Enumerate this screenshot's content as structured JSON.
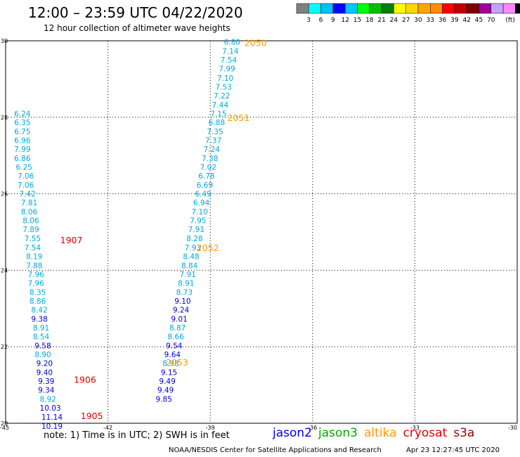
{
  "header": {
    "title": "12:00 – 23:59 UTC 04/22/2020",
    "subtitle": "12 hour collection of altimeter wave heights"
  },
  "colorbar": {
    "colors": [
      "#808080",
      "#00ffff",
      "#00bfff",
      "#0000ff",
      "#00c8ff",
      "#00ff00",
      "#00c000",
      "#008000",
      "#ffff00",
      "#ffd700",
      "#ffa500",
      "#ff8c00",
      "#ff0000",
      "#c00000",
      "#800000",
      "#a000a0",
      "#c8a0ff",
      "#ff88ff",
      "#000000"
    ],
    "labels": [
      "3",
      "6",
      "9",
      "12",
      "15",
      "18",
      "21",
      "24",
      "27",
      "30",
      "33",
      "36",
      "39",
      "42",
      "45",
      "70",
      "(ft)"
    ]
  },
  "axes": {
    "x_ticks": [
      "-45",
      "-42",
      "-39",
      "-36",
      "-33",
      "-30"
    ],
    "y_ticks": [
      "20",
      "22",
      "24",
      "26",
      "28",
      "30"
    ]
  },
  "chart_data": {
    "type": "scatter",
    "xlim": [
      -45,
      -30
    ],
    "ylim": [
      20,
      30
    ],
    "grid": true,
    "tracks": [
      {
        "satellite": "jason2",
        "pass_labels": [
          {
            "text": "2050",
            "lon": -38.0,
            "lat": 29.95,
            "color": "#ff9900"
          },
          {
            "text": "2051",
            "lon": -38.5,
            "lat": 28.0,
            "color": "#ff9900"
          },
          {
            "text": "2052",
            "lon": -39.4,
            "lat": 24.6,
            "color": "#ff9900"
          },
          {
            "text": "2053",
            "lon": -40.3,
            "lat": 21.6,
            "color": "#ff9900"
          }
        ],
        "points": [
          {
            "lon": -38.6,
            "lat": 29.97,
            "swh": "6.80",
            "color": "#00aadd"
          },
          {
            "lon": -38.65,
            "lat": 29.73,
            "swh": "7.14",
            "color": "#00aadd"
          },
          {
            "lon": -38.7,
            "lat": 29.5,
            "swh": "7.54",
            "color": "#00aadd"
          },
          {
            "lon": -38.75,
            "lat": 29.27,
            "swh": "7.99",
            "color": "#00aadd"
          },
          {
            "lon": -38.8,
            "lat": 29.03,
            "swh": "7.10",
            "color": "#00aadd"
          },
          {
            "lon": -38.85,
            "lat": 28.8,
            "swh": "7.53",
            "color": "#00aadd"
          },
          {
            "lon": -38.9,
            "lat": 28.57,
            "swh": "7.22",
            "color": "#00aadd"
          },
          {
            "lon": -38.95,
            "lat": 28.33,
            "swh": "7.44",
            "color": "#00aadd"
          },
          {
            "lon": -39.0,
            "lat": 28.1,
            "swh": "7.15",
            "color": "#00aadd"
          },
          {
            "lon": -39.05,
            "lat": 27.87,
            "swh": "6.88",
            "color": "#00aadd"
          },
          {
            "lon": -39.1,
            "lat": 27.63,
            "swh": "7.35",
            "color": "#00aadd"
          },
          {
            "lon": -39.15,
            "lat": 27.4,
            "swh": "7.37",
            "color": "#00aadd"
          },
          {
            "lon": -39.2,
            "lat": 27.17,
            "swh": "7.24",
            "color": "#00aadd"
          },
          {
            "lon": -39.25,
            "lat": 26.93,
            "swh": "7.38",
            "color": "#00aadd"
          },
          {
            "lon": -39.3,
            "lat": 26.7,
            "swh": "7.02",
            "color": "#00aadd"
          },
          {
            "lon": -39.35,
            "lat": 26.47,
            "swh": "6.78",
            "color": "#00aadd"
          },
          {
            "lon": -39.4,
            "lat": 26.23,
            "swh": "6.69",
            "color": "#00aadd"
          },
          {
            "lon": -39.45,
            "lat": 26.0,
            "swh": "6.49",
            "color": "#00aadd"
          },
          {
            "lon": -39.5,
            "lat": 25.77,
            "swh": "6.94",
            "color": "#00aadd"
          },
          {
            "lon": -39.55,
            "lat": 25.53,
            "swh": "7.10",
            "color": "#00aadd"
          },
          {
            "lon": -39.6,
            "lat": 25.3,
            "swh": "7.95",
            "color": "#00aadd"
          },
          {
            "lon": -39.65,
            "lat": 25.07,
            "swh": "7.91",
            "color": "#00aadd"
          },
          {
            "lon": -39.7,
            "lat": 24.83,
            "swh": "8.28",
            "color": "#00aadd"
          },
          {
            "lon": -39.75,
            "lat": 24.6,
            "swh": "7.93",
            "color": "#00aadd"
          },
          {
            "lon": -39.8,
            "lat": 24.37,
            "swh": "8.48",
            "color": "#00aadd"
          },
          {
            "lon": -39.85,
            "lat": 24.13,
            "swh": "8.84",
            "color": "#00aadd"
          },
          {
            "lon": -39.9,
            "lat": 23.9,
            "swh": "7.91",
            "color": "#00aadd"
          },
          {
            "lon": -39.95,
            "lat": 23.67,
            "swh": "8.91",
            "color": "#00aadd"
          },
          {
            "lon": -40.0,
            "lat": 23.43,
            "swh": "8.73",
            "color": "#00aadd"
          },
          {
            "lon": -40.05,
            "lat": 23.2,
            "swh": "9.10",
            "color": "#0000cc"
          },
          {
            "lon": -40.1,
            "lat": 22.97,
            "swh": "9.24",
            "color": "#0000cc"
          },
          {
            "lon": -40.15,
            "lat": 22.73,
            "swh": "9.01",
            "color": "#0000cc"
          },
          {
            "lon": -40.2,
            "lat": 22.5,
            "swh": "8.87",
            "color": "#00aadd"
          },
          {
            "lon": -40.25,
            "lat": 22.27,
            "swh": "8.66",
            "color": "#00aadd"
          },
          {
            "lon": -40.3,
            "lat": 22.03,
            "swh": "9.54",
            "color": "#0000cc"
          },
          {
            "lon": -40.35,
            "lat": 21.8,
            "swh": "9.64",
            "color": "#0000cc"
          },
          {
            "lon": -40.4,
            "lat": 21.57,
            "swh": "8.98",
            "color": "#00aadd"
          },
          {
            "lon": -40.45,
            "lat": 21.33,
            "swh": "9.15",
            "color": "#0000cc"
          },
          {
            "lon": -40.5,
            "lat": 21.1,
            "swh": "9.49",
            "color": "#0000cc"
          },
          {
            "lon": -40.55,
            "lat": 20.87,
            "swh": "9.49",
            "color": "#0000cc"
          },
          {
            "lon": -40.6,
            "lat": 20.63,
            "swh": "9.85",
            "color": "#0000cc"
          }
        ]
      },
      {
        "satellite": "cryosat",
        "pass_labels": [
          {
            "text": "1907",
            "lon": -43.4,
            "lat": 24.8,
            "color": "#dd0000"
          },
          {
            "text": "1906",
            "lon": -43.0,
            "lat": 21.15,
            "color": "#dd0000"
          },
          {
            "text": "1905",
            "lon": -42.8,
            "lat": 20.2,
            "color": "#dd0000"
          }
        ],
        "points": [
          {
            "lon": -44.75,
            "lat": 28.1,
            "swh": "6.24",
            "color": "#00aadd"
          },
          {
            "lon": -44.75,
            "lat": 27.87,
            "swh": "6.35",
            "color": "#00aadd"
          },
          {
            "lon": -44.75,
            "lat": 27.63,
            "swh": "6.75",
            "color": "#00aadd"
          },
          {
            "lon": -44.75,
            "lat": 27.4,
            "swh": "6.96",
            "color": "#00aadd"
          },
          {
            "lon": -44.75,
            "lat": 27.17,
            "swh": "7.99",
            "color": "#00aadd"
          },
          {
            "lon": -44.75,
            "lat": 26.93,
            "swh": "6.86",
            "color": "#00aadd"
          },
          {
            "lon": -44.7,
            "lat": 26.7,
            "swh": "6.25",
            "color": "#00aadd"
          },
          {
            "lon": -44.65,
            "lat": 26.47,
            "swh": "7.06",
            "color": "#00aadd"
          },
          {
            "lon": -44.65,
            "lat": 26.23,
            "swh": "7.06",
            "color": "#00aadd"
          },
          {
            "lon": -44.6,
            "lat": 26.0,
            "swh": "7.42",
            "color": "#00aadd"
          },
          {
            "lon": -44.55,
            "lat": 25.77,
            "swh": "7.81",
            "color": "#00aadd"
          },
          {
            "lon": -44.55,
            "lat": 25.53,
            "swh": "8.06",
            "color": "#00aadd"
          },
          {
            "lon": -44.5,
            "lat": 25.3,
            "swh": "8.06",
            "color": "#00aadd"
          },
          {
            "lon": -44.5,
            "lat": 25.07,
            "swh": "7.89",
            "color": "#00aadd"
          },
          {
            "lon": -44.45,
            "lat": 24.83,
            "swh": "7.55",
            "color": "#00aadd"
          },
          {
            "lon": -44.45,
            "lat": 24.6,
            "swh": "7.54",
            "color": "#00aadd"
          },
          {
            "lon": -44.4,
            "lat": 24.37,
            "swh": "8.19",
            "color": "#00aadd"
          },
          {
            "lon": -44.4,
            "lat": 24.13,
            "swh": "7.88",
            "color": "#00aadd"
          },
          {
            "lon": -44.35,
            "lat": 23.9,
            "swh": "7.96",
            "color": "#00aadd"
          },
          {
            "lon": -44.35,
            "lat": 23.67,
            "swh": "7.96",
            "color": "#00aadd"
          },
          {
            "lon": -44.3,
            "lat": 23.43,
            "swh": "8.35",
            "color": "#00aadd"
          },
          {
            "lon": -44.3,
            "lat": 23.2,
            "swh": "8.86",
            "color": "#00aadd"
          },
          {
            "lon": -44.25,
            "lat": 22.97,
            "swh": "8.42",
            "color": "#00aadd"
          },
          {
            "lon": -44.25,
            "lat": 22.73,
            "swh": "9.38",
            "color": "#0000cc"
          },
          {
            "lon": -44.2,
            "lat": 22.5,
            "swh": "8.91",
            "color": "#00aadd"
          },
          {
            "lon": -44.2,
            "lat": 22.27,
            "swh": "8.54",
            "color": "#00aadd"
          },
          {
            "lon": -44.15,
            "lat": 22.03,
            "swh": "9.58",
            "color": "#0000cc"
          },
          {
            "lon": -44.15,
            "lat": 21.8,
            "swh": "8.90",
            "color": "#00aadd"
          },
          {
            "lon": -44.1,
            "lat": 21.57,
            "swh": "9.20",
            "color": "#0000cc"
          },
          {
            "lon": -44.1,
            "lat": 21.33,
            "swh": "9.40",
            "color": "#0000cc"
          },
          {
            "lon": -44.05,
            "lat": 21.1,
            "swh": "9.39",
            "color": "#0000cc"
          },
          {
            "lon": -44.05,
            "lat": 20.87,
            "swh": "9.34",
            "color": "#0000cc"
          },
          {
            "lon": -44.0,
            "lat": 20.63,
            "swh": "8.92",
            "color": "#00aadd"
          },
          {
            "lon": -44.0,
            "lat": 20.4,
            "swh": "10.03",
            "color": "#0000cc"
          },
          {
            "lon": -43.95,
            "lat": 20.17,
            "swh": "11.14",
            "color": "#0000cc"
          },
          {
            "lon": -43.95,
            "lat": 19.93,
            "swh": "10.19",
            "color": "#0000cc"
          }
        ]
      }
    ]
  },
  "footer": {
    "note": "note:  1)  Time is in UTC;  2)  SWH is in feet",
    "satellites": [
      {
        "name": "jason2",
        "color": "#0000ee"
      },
      {
        "name": "jason3",
        "color": "#00aa00"
      },
      {
        "name": "altika",
        "color": "#ff9900"
      },
      {
        "name": "cryosat",
        "color": "#dd0000"
      },
      {
        "name": "s3a",
        "color": "#990000"
      }
    ],
    "credit": "NOAA/NESDIS Center for Satellite Applications and Research",
    "timestamp": "Apr 23 12:27:45 UTC 2020"
  }
}
